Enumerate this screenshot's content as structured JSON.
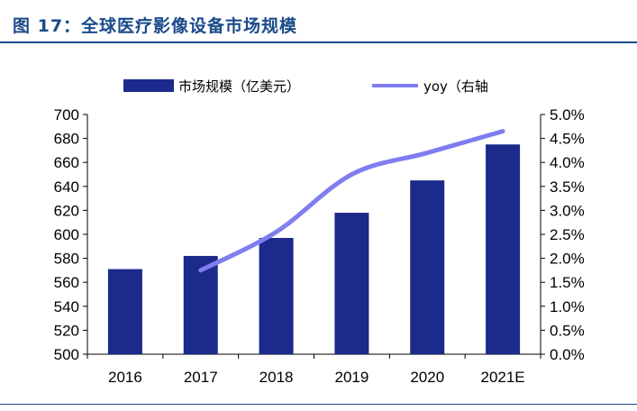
{
  "figure_title": "图 17：全球医疗影像设备市场规模",
  "colors": {
    "title": "#1a4a8a",
    "bars": "#1c2a8c",
    "line": "#7f7df0"
  },
  "chart_data": {
    "type": "bar",
    "categories": [
      "2016",
      "2017",
      "2018",
      "2019",
      "2020",
      "2021E"
    ],
    "series": [
      {
        "name": "市场规模（亿美元）",
        "type": "bar",
        "axis": "left",
        "values": [
          571,
          582,
          597,
          618,
          645,
          675
        ]
      },
      {
        "name": "yoy（右轴",
        "type": "line",
        "axis": "right",
        "values": [
          null,
          1.75,
          2.55,
          3.75,
          4.2,
          4.65
        ]
      }
    ],
    "y_left": {
      "min": 500,
      "max": 700,
      "step": 20,
      "ticks": [
        "500",
        "520",
        "540",
        "560",
        "580",
        "600",
        "620",
        "640",
        "660",
        "680",
        "700"
      ]
    },
    "y_right": {
      "min": 0,
      "max": 5,
      "step": 0.5,
      "ticks": [
        "0.0%",
        "0.5%",
        "1.0%",
        "1.5%",
        "2.0%",
        "2.5%",
        "3.0%",
        "3.5%",
        "4.0%",
        "4.5%",
        "5.0%"
      ]
    },
    "legend_position": "top",
    "grid": false
  }
}
